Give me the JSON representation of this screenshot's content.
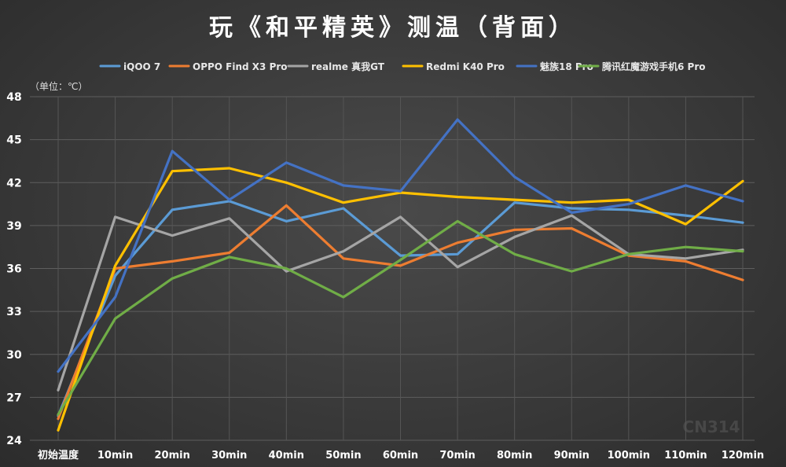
{
  "chart_data": {
    "type": "line",
    "title": "玩《和平精英》测温（背面）",
    "unit_label": "（单位：℃）",
    "categories": [
      "初始温度",
      "10min",
      "20min",
      "30min",
      "40min",
      "50min",
      "60min",
      "70min",
      "80min",
      "90min",
      "100min",
      "110min",
      "120min"
    ],
    "ylim": [
      24,
      48
    ],
    "yticks": [
      "24",
      "27",
      "30",
      "33",
      "36",
      "39",
      "42",
      "45",
      "48"
    ],
    "grid": true,
    "legend_position": "top",
    "series": [
      {
        "name": "iQOO 7",
        "color": "#5b9bd5",
        "values": [
          25.7,
          35.5,
          40.1,
          40.7,
          39.3,
          40.2,
          36.9,
          37.0,
          40.6,
          40.2,
          40.1,
          39.7,
          39.2
        ]
      },
      {
        "name": "OPPO Find X3 Pro",
        "color": "#ed7d31",
        "values": [
          25.5,
          36.0,
          36.5,
          37.1,
          40.4,
          36.7,
          36.2,
          37.8,
          38.7,
          38.8,
          36.9,
          36.5,
          35.2
        ]
      },
      {
        "name": "realme 真我GT",
        "color": "#a5a5a5",
        "values": [
          27.5,
          39.6,
          38.3,
          39.5,
          35.8,
          37.2,
          39.6,
          36.1,
          38.2,
          39.7,
          37.0,
          36.7,
          37.3
        ]
      },
      {
        "name": "Redmi K40 Pro",
        "color": "#ffc000",
        "values": [
          24.7,
          36.2,
          42.8,
          43.0,
          42.0,
          40.6,
          41.3,
          41.0,
          40.8,
          40.6,
          40.8,
          39.1,
          42.1
        ]
      },
      {
        "name": "魅族18 Pro",
        "color": "#4472c4",
        "values": [
          28.8,
          34.0,
          44.2,
          40.8,
          43.4,
          41.8,
          41.4,
          46.4,
          42.4,
          39.9,
          40.5,
          41.8,
          40.7
        ]
      },
      {
        "name": "腾讯红魔游戏手机6 Pro",
        "color": "#70ad47",
        "values": [
          25.8,
          32.5,
          35.3,
          36.8,
          36.0,
          34.0,
          36.6,
          39.3,
          37.0,
          35.8,
          37.0,
          37.5,
          37.2
        ]
      }
    ]
  },
  "watermark": "CN314"
}
